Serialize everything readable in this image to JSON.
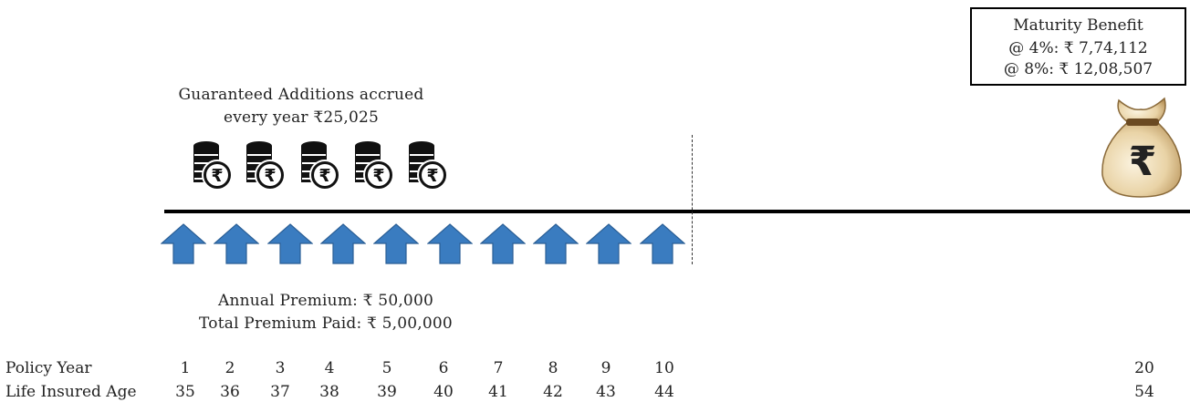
{
  "maturity": {
    "title": "Maturity Benefit",
    "line_4pct": "@ 4%: ₹ 7,74,112",
    "line_8pct": "@ 8%:  ₹ 12,08,507"
  },
  "guaranteed": {
    "line1": "Guaranteed Additions accrued",
    "line2": "every year ₹25,025",
    "coin_icon": "rupee-coin-stack-icon",
    "coin_count": 5
  },
  "premium": {
    "annual": "Annual Premium: ₹ 50,000",
    "total": "Total Premium Paid: ₹ 5,00,000",
    "arrow_icon": "up-arrow-icon",
    "arrow_count": 10,
    "arrow_color": "#3a7cc0"
  },
  "table": {
    "policy_year_label": "Policy Year",
    "age_label": "Life Insured Age",
    "policy_years": [
      "1",
      "2",
      "3",
      "4",
      "5",
      "6",
      "7",
      "8",
      "9",
      "10",
      "20"
    ],
    "ages": [
      "35",
      "36",
      "37",
      "38",
      "39",
      "40",
      "41",
      "42",
      "43",
      "44",
      "54"
    ]
  },
  "money_bag_icon": "rupee-money-bag-icon"
}
